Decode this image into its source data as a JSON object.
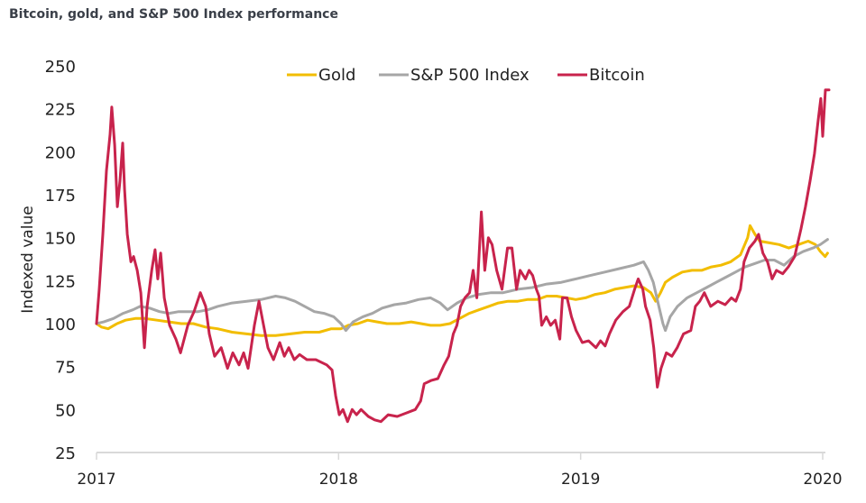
{
  "title": "Bitcoin, gold, and S&P 500 Index performance",
  "chart_data": {
    "type": "line",
    "title": "Bitcoin, gold, and S&P 500 Index performance",
    "xlabel": "",
    "ylabel": "Indexed value",
    "xlim": [
      2017,
      2020.03
    ],
    "ylim": [
      25,
      250
    ],
    "yticks": [
      25,
      50,
      75,
      100,
      125,
      150,
      175,
      200,
      225,
      250
    ],
    "xticks": [
      2017,
      2018,
      2019,
      2020
    ],
    "grid": false,
    "legend_position": "top-center",
    "series": [
      {
        "name": "Gold",
        "color": "#f2bd00",
        "points": [
          [
            2017.0,
            100
          ],
          [
            2017.02,
            98
          ],
          [
            2017.048,
            97
          ],
          [
            2017.085,
            100
          ],
          [
            2017.12,
            102
          ],
          [
            2017.16,
            103
          ],
          [
            2017.2,
            103
          ],
          [
            2017.25,
            102
          ],
          [
            2017.3,
            101
          ],
          [
            2017.35,
            100
          ],
          [
            2017.4,
            100
          ],
          [
            2017.45,
            98
          ],
          [
            2017.5,
            97
          ],
          [
            2017.56,
            95
          ],
          [
            2017.62,
            94
          ],
          [
            2017.68,
            93
          ],
          [
            2017.74,
            93
          ],
          [
            2017.8,
            94
          ],
          [
            2017.86,
            95
          ],
          [
            2017.92,
            95
          ],
          [
            2017.97,
            97
          ],
          [
            2018.01,
            97
          ],
          [
            2018.04,
            99
          ],
          [
            2018.08,
            100
          ],
          [
            2018.12,
            102
          ],
          [
            2018.16,
            101
          ],
          [
            2018.2,
            100
          ],
          [
            2018.25,
            100
          ],
          [
            2018.3,
            101
          ],
          [
            2018.34,
            100
          ],
          [
            2018.38,
            99
          ],
          [
            2018.42,
            99
          ],
          [
            2018.46,
            100
          ],
          [
            2018.5,
            103
          ],
          [
            2018.54,
            106
          ],
          [
            2018.58,
            108
          ],
          [
            2018.62,
            110
          ],
          [
            2018.66,
            112
          ],
          [
            2018.7,
            113
          ],
          [
            2018.74,
            113
          ],
          [
            2018.78,
            114
          ],
          [
            2018.82,
            114
          ],
          [
            2018.86,
            116
          ],
          [
            2018.9,
            116
          ],
          [
            2018.94,
            115
          ],
          [
            2018.98,
            114
          ],
          [
            2019.02,
            115
          ],
          [
            2019.06,
            117
          ],
          [
            2019.1,
            118
          ],
          [
            2019.14,
            120
          ],
          [
            2019.18,
            121
          ],
          [
            2019.22,
            122
          ],
          [
            2019.26,
            121
          ],
          [
            2019.29,
            118
          ],
          [
            2019.31,
            113
          ],
          [
            2019.33,
            118
          ],
          [
            2019.35,
            124
          ],
          [
            2019.38,
            127
          ],
          [
            2019.42,
            130
          ],
          [
            2019.46,
            131
          ],
          [
            2019.5,
            131
          ],
          [
            2019.54,
            133
          ],
          [
            2019.58,
            134
          ],
          [
            2019.62,
            136
          ],
          [
            2019.66,
            140
          ],
          [
            2019.69,
            150
          ],
          [
            2019.7,
            157
          ],
          [
            2019.72,
            152
          ],
          [
            2019.74,
            148
          ],
          [
            2019.78,
            147
          ],
          [
            2019.82,
            146
          ],
          [
            2019.86,
            144
          ],
          [
            2019.9,
            146
          ],
          [
            2019.94,
            148
          ],
          [
            2019.97,
            146
          ],
          [
            2019.99,
            142
          ],
          [
            2020.01,
            139
          ],
          [
            2020.02,
            141
          ]
        ]
      },
      {
        "name": "S&P 500 Index",
        "color": "#a6a6a6",
        "points": [
          [
            2017.0,
            100
          ],
          [
            2017.03,
            101
          ],
          [
            2017.07,
            103
          ],
          [
            2017.11,
            106
          ],
          [
            2017.15,
            108
          ],
          [
            2017.18,
            110
          ],
          [
            2017.22,
            109
          ],
          [
            2017.26,
            107
          ],
          [
            2017.3,
            106
          ],
          [
            2017.34,
            107
          ],
          [
            2017.38,
            107
          ],
          [
            2017.42,
            107
          ],
          [
            2017.46,
            108
          ],
          [
            2017.5,
            110
          ],
          [
            2017.56,
            112
          ],
          [
            2017.62,
            113
          ],
          [
            2017.68,
            114
          ],
          [
            2017.74,
            116
          ],
          [
            2017.78,
            115
          ],
          [
            2017.82,
            113
          ],
          [
            2017.86,
            110
          ],
          [
            2017.9,
            107
          ],
          [
            2017.94,
            106
          ],
          [
            2017.98,
            104
          ],
          [
            2018.01,
            100
          ],
          [
            2018.03,
            96
          ],
          [
            2018.06,
            101
          ],
          [
            2018.1,
            104
          ],
          [
            2018.14,
            106
          ],
          [
            2018.18,
            109
          ],
          [
            2018.23,
            111
          ],
          [
            2018.28,
            112
          ],
          [
            2018.33,
            114
          ],
          [
            2018.38,
            115
          ],
          [
            2018.42,
            112
          ],
          [
            2018.45,
            108
          ],
          [
            2018.49,
            112
          ],
          [
            2018.53,
            115
          ],
          [
            2018.58,
            117
          ],
          [
            2018.63,
            118
          ],
          [
            2018.68,
            118
          ],
          [
            2018.74,
            120
          ],
          [
            2018.8,
            121
          ],
          [
            2018.86,
            123
          ],
          [
            2018.92,
            124
          ],
          [
            2018.98,
            126
          ],
          [
            2019.04,
            128
          ],
          [
            2019.1,
            130
          ],
          [
            2019.16,
            132
          ],
          [
            2019.22,
            134
          ],
          [
            2019.26,
            136
          ],
          [
            2019.28,
            131
          ],
          [
            2019.3,
            124
          ],
          [
            2019.32,
            112
          ],
          [
            2019.34,
            100
          ],
          [
            2019.35,
            96
          ],
          [
            2019.37,
            104
          ],
          [
            2019.4,
            110
          ],
          [
            2019.44,
            115
          ],
          [
            2019.48,
            118
          ],
          [
            2019.52,
            121
          ],
          [
            2019.56,
            124
          ],
          [
            2019.6,
            127
          ],
          [
            2019.64,
            130
          ],
          [
            2019.68,
            133
          ],
          [
            2019.72,
            135
          ],
          [
            2019.76,
            137
          ],
          [
            2019.8,
            137
          ],
          [
            2019.84,
            134
          ],
          [
            2019.88,
            139
          ],
          [
            2019.92,
            142
          ],
          [
            2019.96,
            144
          ],
          [
            2019.99,
            146
          ],
          [
            2020.02,
            149
          ]
        ]
      },
      {
        "name": "Bitcoin",
        "color": "#c8234c",
        "points": [
          [
            2017.0,
            100
          ],
          [
            2017.011,
            120
          ],
          [
            2017.026,
            152
          ],
          [
            2017.041,
            189
          ],
          [
            2017.056,
            210
          ],
          [
            2017.063,
            226
          ],
          [
            2017.075,
            204
          ],
          [
            2017.086,
            168
          ],
          [
            2017.097,
            183
          ],
          [
            2017.108,
            205
          ],
          [
            2017.116,
            178
          ],
          [
            2017.127,
            152
          ],
          [
            2017.142,
            136
          ],
          [
            2017.153,
            139
          ],
          [
            2017.168,
            131
          ],
          [
            2017.183,
            118
          ],
          [
            2017.198,
            86
          ],
          [
            2017.209,
            110
          ],
          [
            2017.228,
            131
          ],
          [
            2017.242,
            143
          ],
          [
            2017.253,
            126
          ],
          [
            2017.265,
            141
          ],
          [
            2017.28,
            115
          ],
          [
            2017.302,
            99
          ],
          [
            2017.328,
            91
          ],
          [
            2017.347,
            83
          ],
          [
            2017.377,
            99
          ],
          [
            2017.403,
            107
          ],
          [
            2017.429,
            118
          ],
          [
            2017.451,
            110
          ],
          [
            2017.466,
            94
          ],
          [
            2017.488,
            81
          ],
          [
            2017.515,
            86
          ],
          [
            2017.541,
            74
          ],
          [
            2017.563,
            83
          ],
          [
            2017.589,
            76
          ],
          [
            2017.608,
            83
          ],
          [
            2017.626,
            74
          ],
          [
            2017.652,
            99
          ],
          [
            2017.671,
            113
          ],
          [
            2017.69,
            99
          ],
          [
            2017.708,
            86
          ],
          [
            2017.731,
            79
          ],
          [
            2017.757,
            89
          ],
          [
            2017.776,
            81
          ],
          [
            2017.794,
            86
          ],
          [
            2017.817,
            79
          ],
          [
            2017.839,
            82
          ],
          [
            2017.869,
            79
          ],
          [
            2017.906,
            79
          ],
          [
            2017.951,
            76
          ],
          [
            2017.973,
            73
          ],
          [
            2017.988,
            58
          ],
          [
            2018.003,
            47
          ],
          [
            2018.018,
            50
          ],
          [
            2018.037,
            43
          ],
          [
            2018.056,
            50
          ],
          [
            2018.074,
            47
          ],
          [
            2018.093,
            50
          ],
          [
            2018.123,
            46
          ],
          [
            2018.149,
            44
          ],
          [
            2018.175,
            43
          ],
          [
            2018.205,
            47
          ],
          [
            2018.242,
            46
          ],
          [
            2018.28,
            48
          ],
          [
            2018.317,
            50
          ],
          [
            2018.339,
            55
          ],
          [
            2018.354,
            65
          ],
          [
            2018.384,
            67
          ],
          [
            2018.41,
            68
          ],
          [
            2018.436,
            76
          ],
          [
            2018.455,
            81
          ],
          [
            2018.474,
            94
          ],
          [
            2018.489,
            99
          ],
          [
            2018.504,
            110
          ],
          [
            2018.522,
            115
          ],
          [
            2018.541,
            118
          ],
          [
            2018.556,
            131
          ],
          [
            2018.571,
            115
          ],
          [
            2018.59,
            165
          ],
          [
            2018.604,
            131
          ],
          [
            2018.619,
            150
          ],
          [
            2018.634,
            146
          ],
          [
            2018.653,
            131
          ],
          [
            2018.675,
            120
          ],
          [
            2018.698,
            144
          ],
          [
            2018.716,
            144
          ],
          [
            2018.735,
            120
          ],
          [
            2018.75,
            131
          ],
          [
            2018.772,
            126
          ],
          [
            2018.787,
            131
          ],
          [
            2018.802,
            128
          ],
          [
            2018.817,
            120
          ],
          [
            2018.828,
            116
          ],
          [
            2018.839,
            99
          ],
          [
            2018.858,
            104
          ],
          [
            2018.876,
            99
          ],
          [
            2018.895,
            102
          ],
          [
            2018.914,
            91
          ],
          [
            2018.925,
            115
          ],
          [
            2018.944,
            115
          ],
          [
            2018.962,
            104
          ],
          [
            2018.981,
            96
          ],
          [
            2019.007,
            89
          ],
          [
            2019.033,
            90
          ],
          [
            2019.063,
            86
          ],
          [
            2019.082,
            90
          ],
          [
            2019.101,
            87
          ],
          [
            2019.119,
            94
          ],
          [
            2019.145,
            102
          ],
          [
            2019.175,
            107
          ],
          [
            2019.201,
            110
          ],
          [
            2019.223,
            120
          ],
          [
            2019.238,
            126
          ],
          [
            2019.257,
            120
          ],
          [
            2019.268,
            110
          ],
          [
            2019.287,
            102
          ],
          [
            2019.302,
            86
          ],
          [
            2019.317,
            63
          ],
          [
            2019.332,
            74
          ],
          [
            2019.354,
            83
          ],
          [
            2019.377,
            81
          ],
          [
            2019.399,
            86
          ],
          [
            2019.425,
            94
          ],
          [
            2019.455,
            96
          ],
          [
            2019.474,
            110
          ],
          [
            2019.492,
            113
          ],
          [
            2019.511,
            118
          ],
          [
            2019.537,
            110
          ],
          [
            2019.567,
            113
          ],
          [
            2019.597,
            111
          ],
          [
            2019.623,
            115
          ],
          [
            2019.641,
            113
          ],
          [
            2019.66,
            120
          ],
          [
            2019.675,
            136
          ],
          [
            2019.697,
            144
          ],
          [
            2019.72,
            148
          ],
          [
            2019.735,
            152
          ],
          [
            2019.753,
            141
          ],
          [
            2019.772,
            136
          ],
          [
            2019.791,
            126
          ],
          [
            2019.809,
            131
          ],
          [
            2019.835,
            129
          ],
          [
            2019.858,
            133
          ],
          [
            2019.884,
            139
          ],
          [
            2019.91,
            155
          ],
          [
            2019.929,
            168
          ],
          [
            2019.948,
            183
          ],
          [
            2019.966,
            199
          ],
          [
            2019.981,
            218
          ],
          [
            2019.992,
            231
          ],
          [
            2020.0,
            209
          ],
          [
            2020.011,
            236
          ],
          [
            2020.026,
            236
          ]
        ]
      }
    ]
  }
}
